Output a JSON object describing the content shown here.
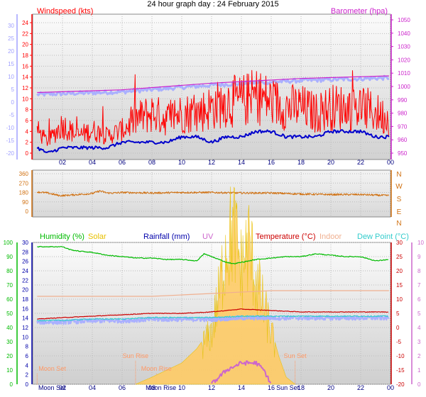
{
  "page": {
    "title": "24 hour graph day : 24 February 2015"
  },
  "colors": {
    "windspeed": "#ff0000",
    "windavg": "#0000cc",
    "windtemp_axis": "#a0a0ff",
    "barometer": "#cc22cc",
    "barometer_band": "#aab0ff",
    "direction": "#d07010",
    "humidity": "#00bb00",
    "solar": "#e8c000",
    "rainfall": "#0000aa",
    "uv": "#cc66cc",
    "temperature": "#cc0000",
    "indoor": "#f0b090",
    "dewpoint": "#33cccc",
    "temp_band": "#aab0ff",
    "solar_fill": "#ffcc66",
    "sunrise_marker": "#ff9966",
    "moon_marker": "#ff9966",
    "panel_bg_top": "#f8f8f8",
    "panel_bg_bottom": "#d8d8d8",
    "xaxis_text": "#000080"
  },
  "chart_data": [
    {
      "type": "line",
      "name": "wind-barometer",
      "title": "24 hour graph day : 24 February 2015",
      "x_tick_labels": [
        "02",
        "04",
        "06",
        "08",
        "10",
        "12",
        "14",
        "16",
        "18",
        "20",
        "22",
        "00"
      ],
      "left_axis": {
        "label": "Windspeed (kts)",
        "ticks": [
          0,
          2,
          4,
          6,
          8,
          10,
          12,
          14,
          16,
          18,
          20,
          22,
          24
        ]
      },
      "far_left_axis": {
        "ticks": [
          -20,
          -15,
          -10,
          -5,
          0,
          5,
          10,
          15,
          20,
          25,
          30
        ]
      },
      "right_axis": {
        "label": "Barometer (hpa)",
        "ticks": [
          950,
          960,
          970,
          980,
          990,
          1000,
          1010,
          1020,
          1030,
          1040,
          1050
        ]
      },
      "series": [
        {
          "name": "Windspeed",
          "x_hours": [
            0.3,
            1,
            2,
            3,
            4,
            5,
            6,
            7,
            8,
            9,
            10,
            11,
            12,
            13,
            14,
            15,
            16,
            17,
            18,
            19,
            20,
            21,
            22,
            23,
            23.9
          ],
          "values": [
            4,
            2,
            5,
            3,
            4,
            3,
            4,
            6,
            7,
            6,
            7,
            7,
            8,
            9,
            9,
            10,
            9,
            8,
            8,
            7,
            8,
            8,
            8,
            7,
            6
          ]
        },
        {
          "name": "Average windspeed",
          "x_hours": [
            0.3,
            1,
            2,
            3,
            4,
            5,
            6,
            7,
            8,
            9,
            10,
            11,
            12,
            13,
            14,
            15,
            16,
            17,
            18,
            19,
            20,
            21,
            22,
            23,
            23.9
          ],
          "values": [
            1,
            0,
            1,
            1,
            1,
            1,
            2,
            2,
            2,
            2,
            3,
            3,
            2,
            3,
            3,
            4,
            4,
            3,
            3,
            3,
            4,
            4,
            4,
            3,
            3
          ]
        },
        {
          "name": "Barometer",
          "x_hours": [
            0.3,
            6,
            12,
            18,
            23.9
          ],
          "values": [
            995.5,
            997.5,
            1002.5,
            1006,
            1008
          ]
        }
      ],
      "legend": "top"
    },
    {
      "type": "line",
      "name": "wind-direction",
      "x_tick_labels": [],
      "left_axis": {
        "ticks": [
          0,
          90,
          180,
          270,
          360
        ]
      },
      "right_axis": {
        "ticks": [
          "N",
          "W",
          "S",
          "E",
          "N"
        ]
      },
      "series": [
        {
          "name": "Wind direction",
          "x_hours": [
            0.3,
            1,
            1.8,
            2,
            3,
            4,
            4.5,
            5,
            5.5,
            6,
            8,
            10,
            12,
            14,
            16,
            18,
            20,
            22,
            23.9
          ],
          "values": [
            185,
            175,
            150,
            150,
            160,
            170,
            195,
            175,
            175,
            180,
            175,
            180,
            180,
            175,
            175,
            165,
            160,
            160,
            150
          ]
        }
      ]
    },
    {
      "type": "line",
      "name": "temperature-humidity",
      "x_tick_labels": [
        "02",
        "04",
        "06",
        "08",
        "10",
        "12",
        "14",
        "16",
        "18",
        "20",
        "22",
        "00"
      ],
      "axis_labels": [
        {
          "text": "Humidity (%)",
          "series": "humidity"
        },
        {
          "text": "Solar",
          "series": "solar"
        },
        {
          "text": "Rainfall (mm)",
          "series": "rainfall"
        },
        {
          "text": "UV",
          "series": "uv"
        },
        {
          "text": "Temperature (°C)",
          "series": "temperature"
        },
        {
          "text": "Indoor",
          "series": "indoor"
        },
        {
          "text": "Dew Point (°C)",
          "series": "dewpoint"
        }
      ],
      "humidity_axis": {
        "ticks": [
          0,
          10,
          20,
          30,
          40,
          50,
          60,
          70,
          80,
          90,
          100
        ]
      },
      "rainfall_axis": {
        "ticks": [
          0,
          2,
          4,
          6,
          8,
          10,
          12,
          14,
          16,
          18,
          20,
          22,
          24,
          26,
          28,
          30
        ]
      },
      "temperature_axis": {
        "ticks": [
          -20,
          -15,
          -10,
          -5,
          0,
          5,
          10,
          15,
          20,
          25,
          30
        ]
      },
      "uv_axis": {
        "ticks": [
          0,
          1,
          2,
          3,
          4,
          5,
          6,
          7,
          8,
          9,
          10
        ]
      },
      "annotations": [
        {
          "text": "Moon Set",
          "x_hours": 0.3
        },
        {
          "text": "Sun Rise",
          "x_hours": 6.9
        },
        {
          "text": "Moon Rise",
          "x_hours": 8.3
        },
        {
          "text": "Sun Set",
          "x_hours": 17.6
        }
      ],
      "bottom_labels": [
        {
          "text": "Moon Set",
          "x_hours": 1.3
        },
        {
          "text": "Moon Rise",
          "x_hours": 8.6
        },
        {
          "text": "Sun Set",
          "x_hours": 17.1
        }
      ],
      "series": [
        {
          "name": "Humidity",
          "x_hours": [
            0.3,
            1,
            2,
            2.5,
            3,
            4,
            5,
            6,
            7,
            8,
            9,
            10,
            11,
            11.5,
            12,
            13,
            13.5,
            14,
            15,
            16,
            17,
            18,
            19,
            20,
            21,
            22,
            23,
            23.9
          ],
          "values": [
            97,
            97,
            97,
            95,
            94,
            93,
            91,
            90,
            89,
            89,
            88,
            88,
            87,
            92,
            90,
            86,
            85,
            86,
            88,
            89,
            90,
            90,
            92,
            91,
            90,
            90,
            87,
            88
          ]
        },
        {
          "name": "Temperature",
          "x_hours": [
            0.3,
            2,
            4,
            6,
            8,
            10,
            12,
            14,
            16,
            18,
            20,
            22,
            23.9
          ],
          "values": [
            3,
            3.5,
            4,
            4.5,
            5,
            5,
            5.5,
            6.5,
            6,
            5.5,
            5.5,
            5.5,
            5.5
          ]
        },
        {
          "name": "Indoor",
          "x_hours": [
            0.3,
            4,
            8,
            10,
            12,
            14,
            16,
            18,
            20,
            22,
            23.9
          ],
          "values": [
            11,
            11,
            11,
            11.5,
            12,
            12.5,
            13,
            13,
            13,
            13,
            13
          ]
        },
        {
          "name": "Dew Point",
          "x_hours": [
            0.3,
            2,
            4,
            6,
            8,
            10,
            12,
            14,
            16,
            18,
            20,
            22,
            23.9
          ],
          "values": [
            2.5,
            2.5,
            3,
            3,
            3.5,
            3.5,
            3.5,
            4,
            4,
            4,
            4,
            4,
            4
          ]
        },
        {
          "name": "Solar",
          "x_hours": [
            6.9,
            8,
            9,
            10,
            11,
            12,
            12.5,
            13,
            13.5,
            14,
            14.5,
            15,
            16,
            16.5,
            17,
            17.6
          ],
          "values": [
            0,
            0.5,
            1,
            1.5,
            2.5,
            4,
            7,
            11,
            12,
            9,
            11,
            8,
            4,
            2,
            0.5,
            0
          ]
        },
        {
          "name": "UV",
          "x_hours": [
            12,
            13,
            14,
            15,
            15.5,
            16
          ],
          "values": [
            0,
            1,
            1.5,
            1.5,
            1,
            0
          ]
        }
      ]
    }
  ]
}
